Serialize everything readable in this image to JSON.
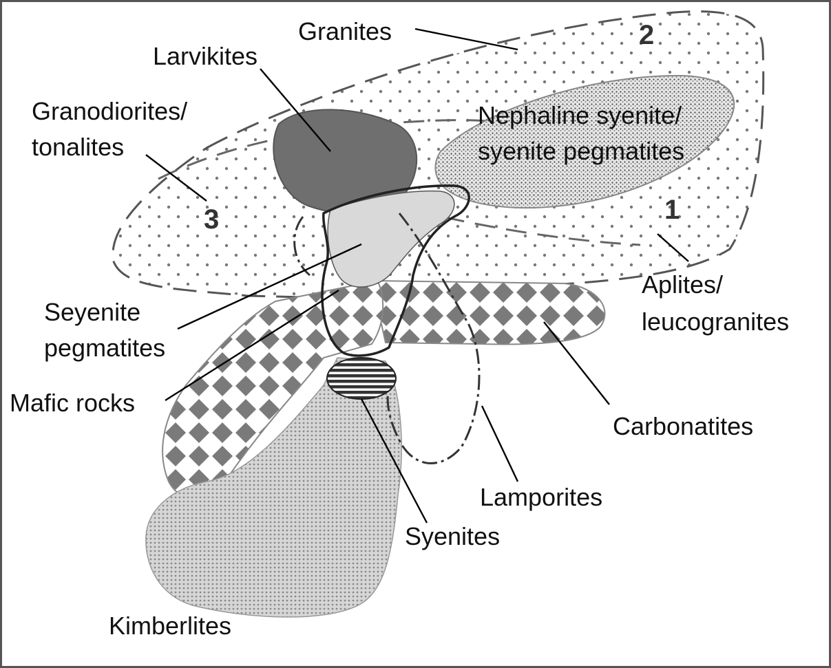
{
  "diagram": {
    "labels": {
      "granites": "Granites",
      "larvikites": "Larvikites",
      "granodiorites_line1": "Granodiorites/",
      "granodiorites_line2": "tonalites",
      "nepheline_line1": "Nephaline syenite/",
      "nepheline_line2": "syenite pegmatites",
      "aplites_line1": "Aplites/",
      "aplites_line2": "leucogranites",
      "seyenite_line1": "Seyenite",
      "seyenite_line2": "pegmatites",
      "mafic": "Mafic rocks",
      "carbonatites": "Carbonatites",
      "lamporites": "Lamporites",
      "syenites": "Syenites",
      "kimberlites": "Kimberlites"
    },
    "field_numbers": {
      "one": "1",
      "two": "2",
      "three": "3"
    }
  },
  "colors": {
    "larvikite_fill": "#6f6f6f",
    "seyenite_fill": "#d9d9d9",
    "diamond": "#777777",
    "kimberlite_fill": "#c9c9c9",
    "outline": "#222222"
  }
}
